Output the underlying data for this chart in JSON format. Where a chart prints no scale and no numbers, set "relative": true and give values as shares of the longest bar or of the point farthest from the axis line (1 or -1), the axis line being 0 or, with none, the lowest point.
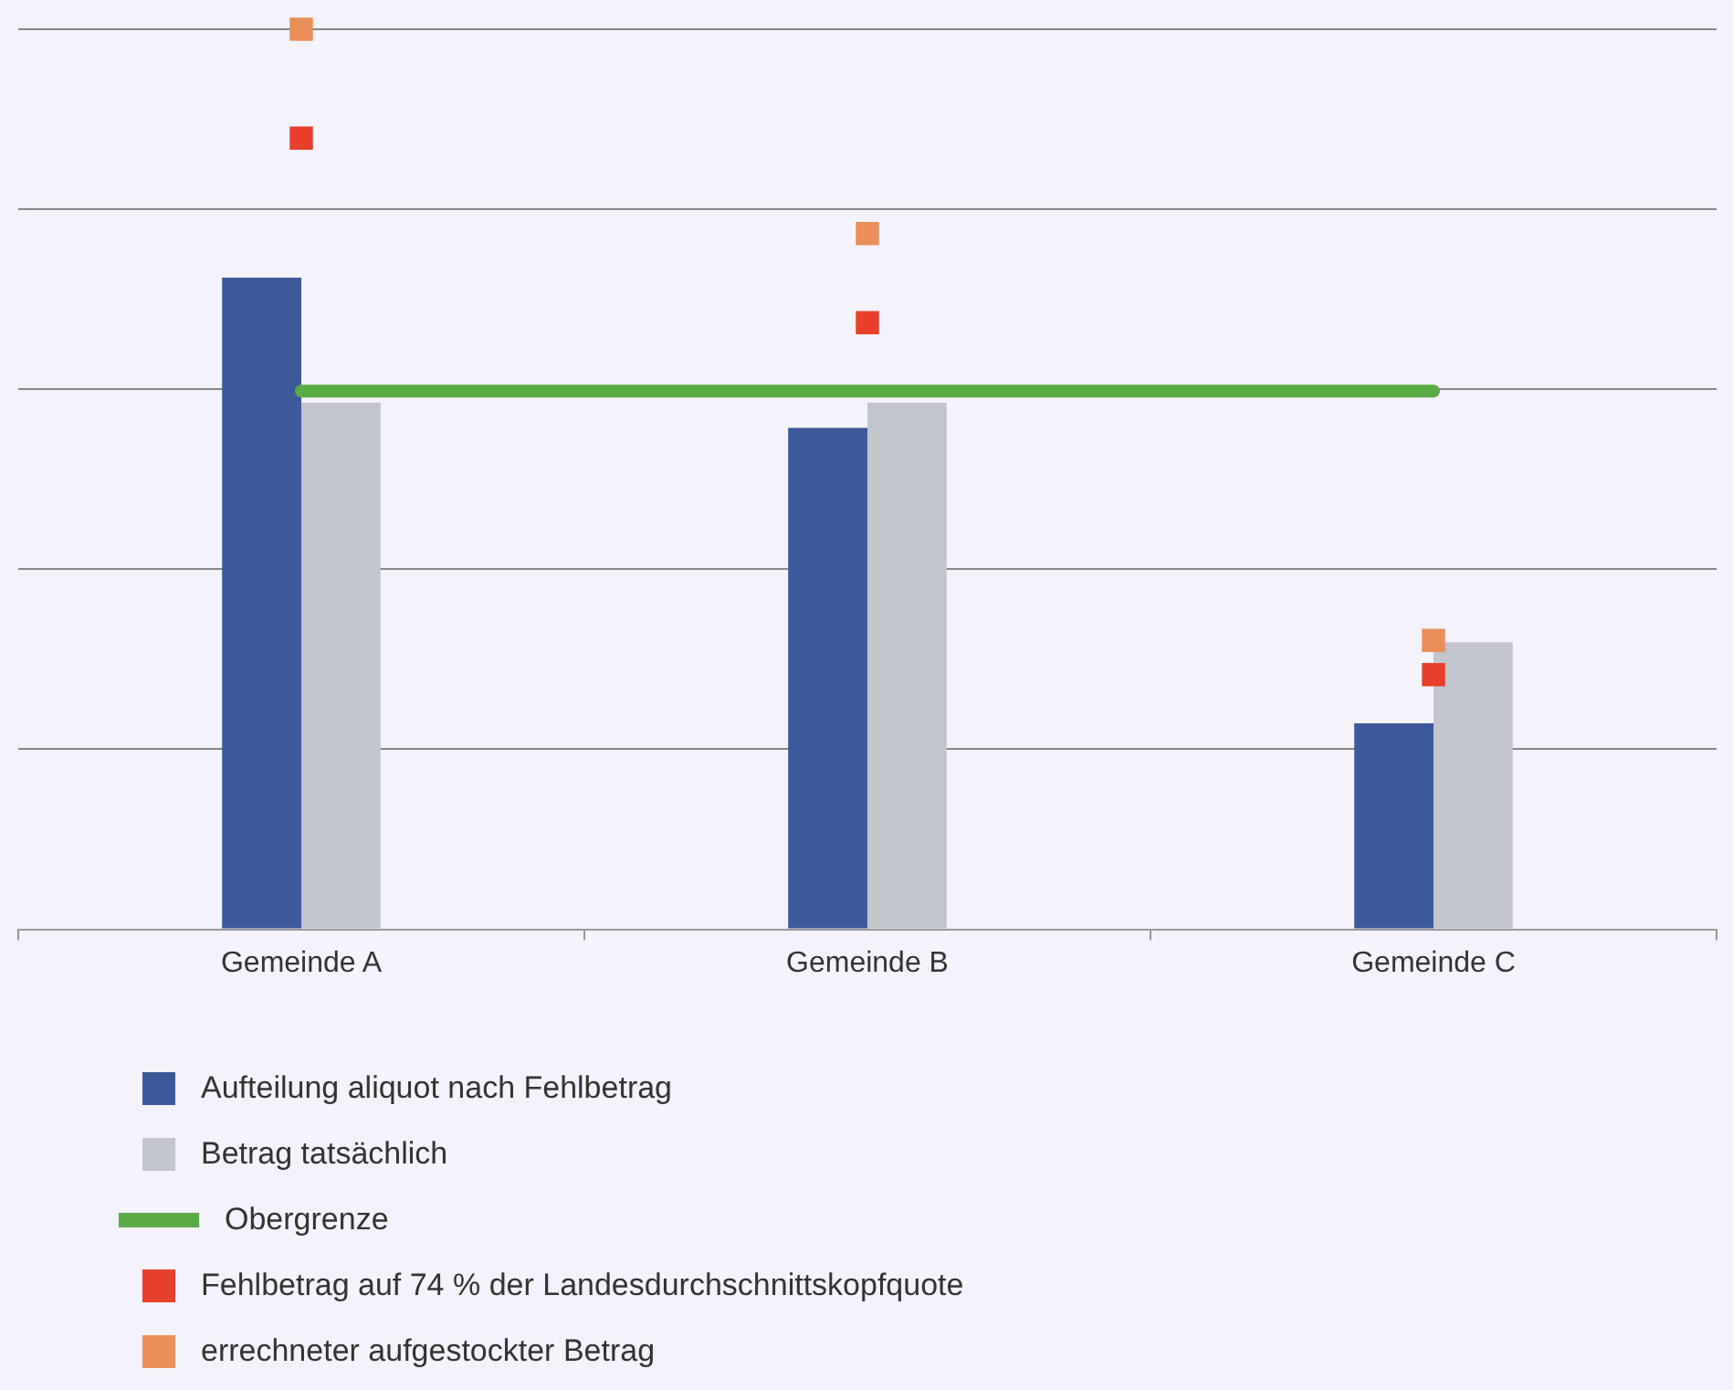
{
  "chart_data": {
    "type": "bar",
    "relative": true,
    "categories": [
      "Gemeinde A",
      "Gemeinde B",
      "Gemeinde C"
    ],
    "series": [
      {
        "name": "Aufteilung aliquot nach Fehlbetrag",
        "color": "#3c5a9a",
        "values": [
          0.724,
          0.557,
          0.229
        ]
      },
      {
        "name": "Betrag tatsächlich",
        "color": "#c3c5cd",
        "values": [
          0.585,
          0.585,
          0.319
        ]
      },
      {
        "name": "Obergrenze",
        "type": "line",
        "color": "#5aaa46",
        "values": [
          0.598,
          0.598,
          0.598
        ]
      },
      {
        "name": "Fehlbetrag auf 74 % der Landesdurchschnittskopfquote",
        "type": "scatter",
        "marker": "square",
        "color": "#e8402c",
        "values": [
          0.879,
          0.674,
          0.283
        ]
      },
      {
        "name": "errechneter aufgestockter Betrag",
        "type": "scatter",
        "marker": "square",
        "color": "#eb8f5a",
        "values": [
          1,
          0.773,
          0.321
        ]
      }
    ],
    "grid": "y",
    "legend": "bottom"
  }
}
